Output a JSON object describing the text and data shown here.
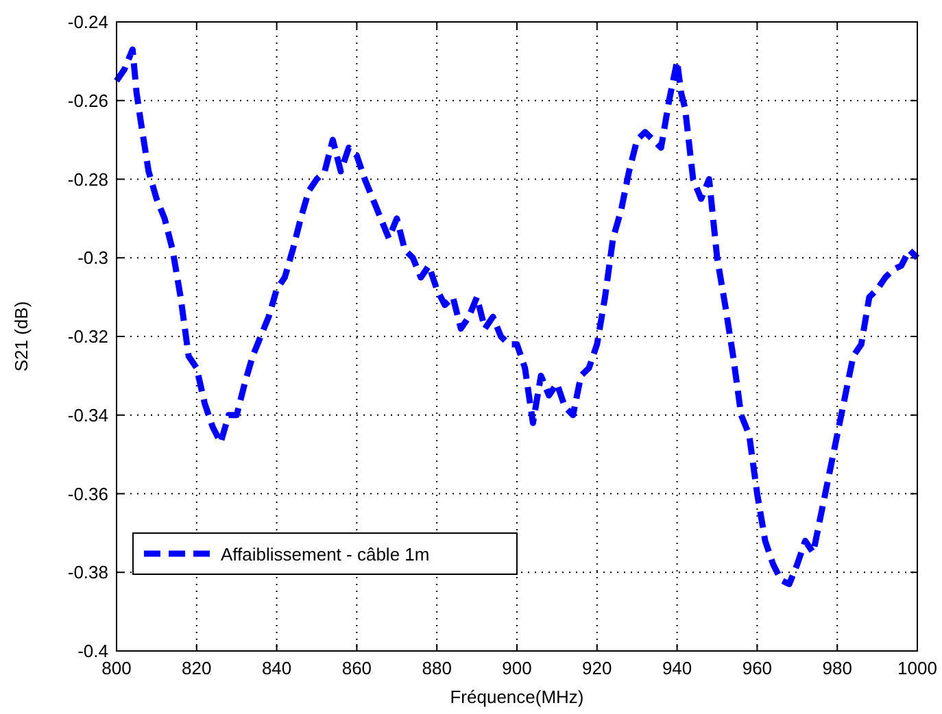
{
  "chart_data": {
    "type": "line",
    "xlabel": "Fréquence(MHz)",
    "ylabel": "S21 (dB)",
    "x": [
      800,
      802,
      804,
      805,
      806,
      808,
      810,
      812,
      814,
      816,
      818,
      820,
      822,
      824,
      826,
      828,
      830,
      832,
      834,
      836,
      838,
      840,
      842,
      844,
      846,
      848,
      850,
      852,
      854,
      856,
      858,
      860,
      862,
      864,
      866,
      868,
      870,
      872,
      874,
      876,
      878,
      880,
      882,
      884,
      886,
      888,
      890,
      892,
      894,
      896,
      898,
      900,
      902,
      904,
      906,
      908,
      910,
      912,
      914,
      916,
      918,
      920,
      922,
      924,
      926,
      928,
      930,
      932,
      934,
      936,
      938,
      940,
      941,
      942,
      944,
      946,
      948,
      950,
      952,
      954,
      956,
      958,
      960,
      962,
      964,
      966,
      968,
      970,
      972,
      974,
      976,
      978,
      980,
      982,
      984,
      986,
      988,
      990,
      992,
      994,
      996,
      998,
      1000
    ],
    "series": [
      {
        "name": "Affaiblissement - câble 1m",
        "color": "#0000ff",
        "line_style": "dashed",
        "values": [
          -0.255,
          -0.252,
          -0.247,
          -0.258,
          -0.265,
          -0.278,
          -0.285,
          -0.29,
          -0.298,
          -0.31,
          -0.325,
          -0.328,
          -0.337,
          -0.343,
          -0.347,
          -0.34,
          -0.34,
          -0.332,
          -0.325,
          -0.32,
          -0.315,
          -0.308,
          -0.305,
          -0.298,
          -0.29,
          -0.283,
          -0.28,
          -0.278,
          -0.27,
          -0.278,
          -0.272,
          -0.274,
          -0.28,
          -0.285,
          -0.29,
          -0.295,
          -0.29,
          -0.298,
          -0.3,
          -0.305,
          -0.302,
          -0.308,
          -0.312,
          -0.31,
          -0.318,
          -0.315,
          -0.31,
          -0.318,
          -0.315,
          -0.32,
          -0.322,
          -0.322,
          -0.328,
          -0.342,
          -0.33,
          -0.335,
          -0.332,
          -0.338,
          -0.34,
          -0.33,
          -0.328,
          -0.322,
          -0.31,
          -0.295,
          -0.288,
          -0.278,
          -0.27,
          -0.268,
          -0.27,
          -0.272,
          -0.26,
          -0.25,
          -0.258,
          -0.262,
          -0.28,
          -0.285,
          -0.28,
          -0.3,
          -0.312,
          -0.325,
          -0.34,
          -0.345,
          -0.36,
          -0.372,
          -0.378,
          -0.382,
          -0.383,
          -0.378,
          -0.372,
          -0.375,
          -0.365,
          -0.355,
          -0.345,
          -0.335,
          -0.325,
          -0.322,
          -0.31,
          -0.308,
          -0.305,
          -0.303,
          -0.302,
          -0.298,
          -0.3
        ]
      }
    ],
    "xlim": [
      800,
      1000
    ],
    "xticks": [
      800,
      820,
      840,
      860,
      880,
      900,
      920,
      940,
      960,
      980,
      1000
    ],
    "ylim": [
      -0.4,
      -0.24
    ],
    "yticks": [
      -0.4,
      -0.38,
      -0.36,
      -0.34,
      -0.32,
      -0.3,
      -0.28,
      -0.26,
      -0.24
    ],
    "grid": true,
    "legend": "bottom left"
  }
}
